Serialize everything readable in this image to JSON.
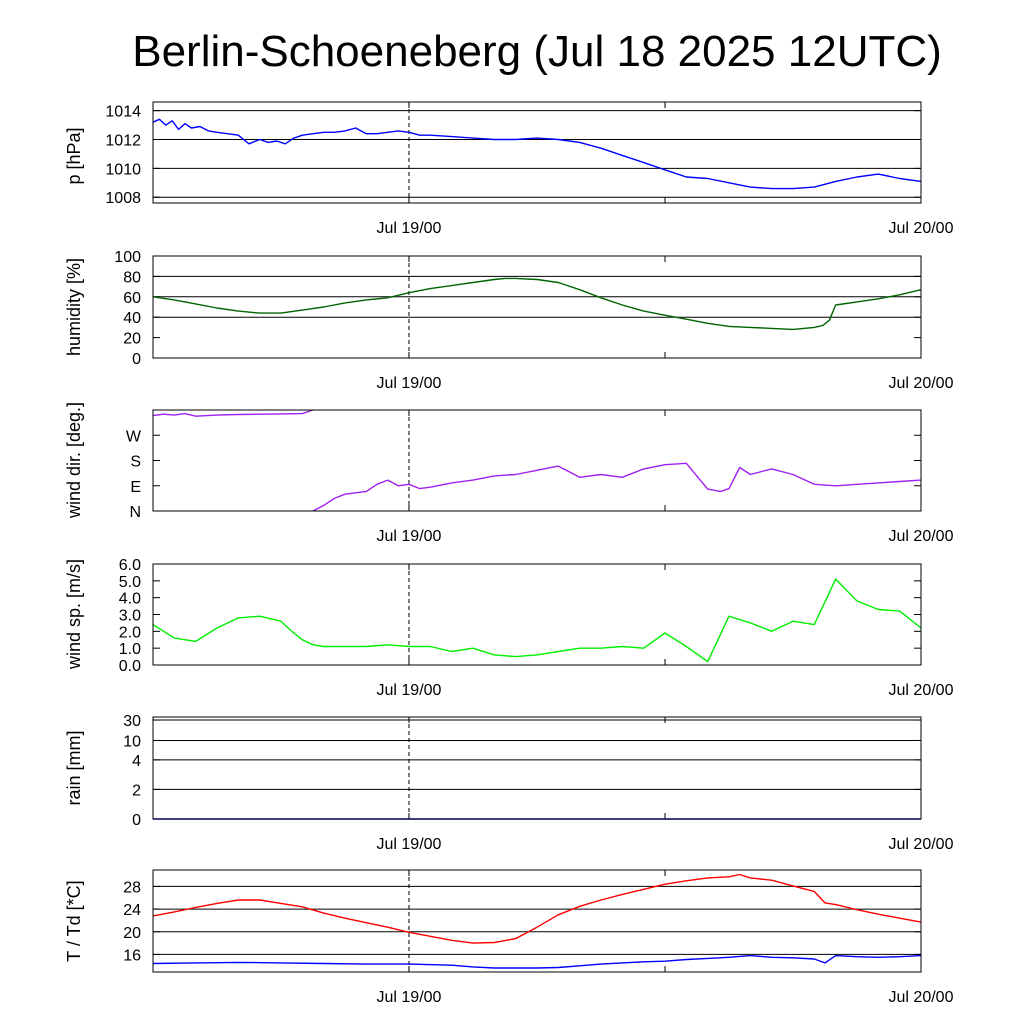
{
  "title": "Berlin-Schoeneberg (Jul 18 2025 12UTC)",
  "chart_data": [
    {
      "type": "line",
      "ylabel": "p [hPa]",
      "x_unit": "hours since Jul 18 2025 12UTC",
      "xlim": [
        0,
        36
      ],
      "x_ticks": [
        "Jul 19/00",
        "Jul 20/00"
      ],
      "ylim": [
        1007.6,
        1014.6
      ],
      "y_ticks": [
        "1014",
        "1012",
        "1010",
        "1008"
      ],
      "y_tick_values": [
        1014,
        1012,
        1010,
        1008
      ],
      "grid_lines": [
        1014,
        1012,
        1010,
        1008
      ],
      "series": [
        {
          "color": "#0000ff",
          "x": [
            0,
            0.3,
            0.6,
            0.9,
            1.2,
            1.5,
            1.8,
            2.2,
            2.6,
            3,
            3.5,
            4,
            4.5,
            5,
            5.4,
            5.8,
            6.2,
            6.6,
            7,
            7.5,
            8,
            8.5,
            9,
            9.5,
            10,
            10.5,
            11,
            11.5,
            12,
            12.5,
            13,
            14,
            15,
            16,
            17,
            18,
            19,
            20,
            21,
            22,
            23,
            24,
            25,
            26,
            27,
            28,
            29,
            30,
            31,
            32,
            33,
            34,
            35,
            36
          ],
          "y": [
            1013.2,
            1013.4,
            1013.0,
            1013.3,
            1012.7,
            1013.1,
            1012.8,
            1012.9,
            1012.6,
            1012.5,
            1012.4,
            1012.3,
            1011.7,
            1012.0,
            1011.8,
            1011.9,
            1011.7,
            1012.1,
            1012.3,
            1012.4,
            1012.5,
            1012.5,
            1012.6,
            1012.8,
            1012.4,
            1012.4,
            1012.5,
            1012.6,
            1012.5,
            1012.3,
            1012.3,
            1012.2,
            1012.1,
            1012.0,
            1012.0,
            1012.1,
            1012.0,
            1011.8,
            1011.4,
            1010.9,
            1010.4,
            1009.9,
            1009.4,
            1009.3,
            1009.0,
            1008.7,
            1008.6,
            1008.6,
            1008.7,
            1009.1,
            1009.4,
            1009.6,
            1009.3,
            1009.1
          ]
        }
      ]
    },
    {
      "type": "line",
      "ylabel": "humidity [%]",
      "xlim": [
        0,
        36
      ],
      "x_ticks": [
        "Jul 19/00",
        "Jul 20/00"
      ],
      "ylim": [
        0,
        100
      ],
      "y_ticks": [
        "100",
        "80",
        "60",
        "40",
        "20",
        "0"
      ],
      "y_tick_values": [
        100,
        80,
        60,
        40,
        20,
        0
      ],
      "grid_lines": [
        80,
        60,
        40
      ],
      "series": [
        {
          "color": "#006400",
          "x": [
            0,
            1,
            2,
            3,
            4,
            5,
            6,
            7,
            8,
            9,
            10,
            11,
            12,
            13,
            14,
            15,
            16,
            16.5,
            17,
            18,
            19,
            20,
            21,
            22,
            23,
            24,
            25,
            26,
            27,
            28,
            29,
            30,
            31,
            31.4,
            31.7,
            32,
            33,
            34,
            35,
            36
          ],
          "y": [
            60,
            57,
            53,
            49,
            46,
            44,
            44,
            47,
            50,
            54,
            57,
            59,
            64,
            68,
            71,
            74,
            77,
            78,
            78,
            77,
            74,
            67,
            59,
            52,
            46,
            42,
            38,
            34,
            31,
            30,
            29,
            28,
            30,
            32,
            37,
            52,
            55,
            58,
            62,
            67
          ]
        }
      ]
    },
    {
      "type": "line",
      "ylabel": "wind dir. [deg.]",
      "xlim": [
        0,
        36
      ],
      "x_ticks": [
        "Jul 19/00",
        "Jul 20/00"
      ],
      "ylim": [
        0,
        360
      ],
      "y_ticks": [
        "W",
        "S",
        "E",
        "N"
      ],
      "y_tick_values": [
        270,
        180,
        90,
        0
      ],
      "grid_lines": [],
      "series": [
        {
          "color": "#a020f0",
          "x": [
            0,
            0.5,
            1,
            1.5,
            2,
            3,
            4,
            5,
            6,
            7,
            7.5
          ],
          "y": [
            340,
            345,
            342,
            347,
            338,
            342,
            344,
            345,
            346,
            347,
            360
          ]
        },
        {
          "color": "#a020f0",
          "x": [
            7.5,
            8,
            8.5,
            9,
            10,
            10.5,
            11,
            11.5,
            12,
            12.5,
            13,
            14,
            15,
            16,
            17,
            18,
            19,
            20,
            21,
            22,
            23,
            24,
            25,
            26,
            26.6,
            27,
            27.5,
            28,
            29,
            30,
            31,
            32,
            33,
            34,
            35,
            36
          ],
          "y": [
            0,
            20,
            45,
            60,
            70,
            95,
            110,
            90,
            95,
            80,
            85,
            100,
            110,
            125,
            130,
            145,
            160,
            120,
            130,
            120,
            150,
            165,
            170,
            78,
            70,
            80,
            155,
            130,
            150,
            130,
            95,
            90,
            95,
            100,
            105,
            110
          ]
        }
      ]
    },
    {
      "type": "line",
      "ylabel": "wind sp. [m/s]",
      "xlim": [
        0,
        36
      ],
      "x_ticks": [
        "Jul 19/00",
        "Jul 20/00"
      ],
      "ylim": [
        0,
        6
      ],
      "y_ticks": [
        "6.0",
        "5.0",
        "4.0",
        "3.0",
        "2.0",
        "1.0",
        "0.0"
      ],
      "y_tick_values": [
        6,
        5,
        4,
        3,
        2,
        1,
        0
      ],
      "grid_lines": [],
      "series": [
        {
          "color": "#00ee00",
          "x": [
            0,
            0.5,
            1,
            2,
            3,
            4,
            5,
            6,
            6.5,
            7,
            7.5,
            8,
            9,
            10,
            11,
            12,
            13,
            14,
            15,
            16,
            17,
            18,
            19,
            20,
            21,
            22,
            23,
            24,
            25,
            26,
            27,
            28,
            29,
            30,
            31,
            32,
            33,
            34,
            35,
            36
          ],
          "y": [
            2.4,
            2.0,
            1.6,
            1.4,
            2.2,
            2.8,
            2.9,
            2.6,
            2.0,
            1.5,
            1.2,
            1.1,
            1.1,
            1.1,
            1.2,
            1.1,
            1.1,
            0.8,
            1.0,
            0.6,
            0.5,
            0.6,
            0.8,
            1.0,
            1.0,
            1.1,
            1.0,
            1.9,
            1.1,
            0.2,
            2.9,
            2.5,
            2.0,
            2.6,
            2.4,
            5.1,
            3.8,
            3.3,
            3.2,
            2.2
          ]
        }
      ]
    },
    {
      "type": "line",
      "ylabel": "rain [mm]",
      "xlim": [
        0,
        36
      ],
      "x_ticks": [
        "Jul 19/00",
        "Jul 20/00"
      ],
      "ylim": [
        0,
        30
      ],
      "y_ticks": [
        "30",
        "10",
        "4",
        "2",
        "0"
      ],
      "y_tick_values": [
        30,
        10,
        4,
        2,
        0
      ],
      "grid_lines": [
        30,
        10,
        4,
        2
      ],
      "series": [
        {
          "color": "#0000ff",
          "x": [
            0,
            36
          ],
          "y": [
            0,
            0
          ]
        }
      ]
    },
    {
      "type": "line",
      "ylabel": "T / Td [*C]",
      "xlim": [
        0,
        36
      ],
      "x_ticks": [
        "Jul 19/00",
        "Jul 20/00"
      ],
      "ylim": [
        12.9,
        30.9
      ],
      "y_ticks": [
        "28",
        "24",
        "20",
        "16"
      ],
      "y_tick_values": [
        28,
        24,
        20,
        16
      ],
      "grid_lines": [
        28,
        24,
        20,
        16
      ],
      "series": [
        {
          "color": "#ff0000",
          "x": [
            0,
            1,
            2,
            3,
            4,
            5,
            6,
            7,
            8,
            9,
            10,
            11,
            12,
            13,
            14,
            15,
            16,
            17,
            18,
            19,
            20,
            21,
            22,
            23,
            24,
            25,
            26,
            27,
            27.5,
            28,
            29,
            30,
            31,
            31.5,
            32,
            33,
            34,
            35,
            36
          ],
          "y": [
            22.8,
            23.5,
            24.3,
            25.0,
            25.6,
            25.6,
            25.0,
            24.4,
            23.3,
            22.4,
            21.6,
            20.8,
            19.9,
            19.2,
            18.5,
            18.0,
            18.1,
            18.8,
            20.8,
            23.0,
            24.5,
            25.6,
            26.6,
            27.5,
            28.4,
            29.0,
            29.5,
            29.7,
            30.1,
            29.5,
            29.1,
            28.1,
            27.1,
            25.1,
            24.8,
            23.9,
            23.1,
            22.4,
            21.7
          ]
        },
        {
          "color": "#0000ff",
          "x": [
            0,
            2,
            4,
            6,
            8,
            10,
            12,
            14,
            15,
            16,
            17,
            18,
            19,
            20,
            21,
            22,
            23,
            24,
            25,
            26,
            27,
            28,
            29,
            30,
            31,
            31.5,
            32,
            33,
            34,
            35,
            36
          ],
          "y": [
            14.4,
            14.5,
            14.6,
            14.5,
            14.4,
            14.3,
            14.3,
            14.1,
            13.8,
            13.6,
            13.6,
            13.6,
            13.7,
            14.0,
            14.3,
            14.5,
            14.7,
            14.8,
            15.1,
            15.3,
            15.5,
            15.8,
            15.5,
            15.4,
            15.2,
            14.5,
            15.8,
            15.6,
            15.5,
            15.6,
            15.8
          ]
        }
      ]
    }
  ]
}
